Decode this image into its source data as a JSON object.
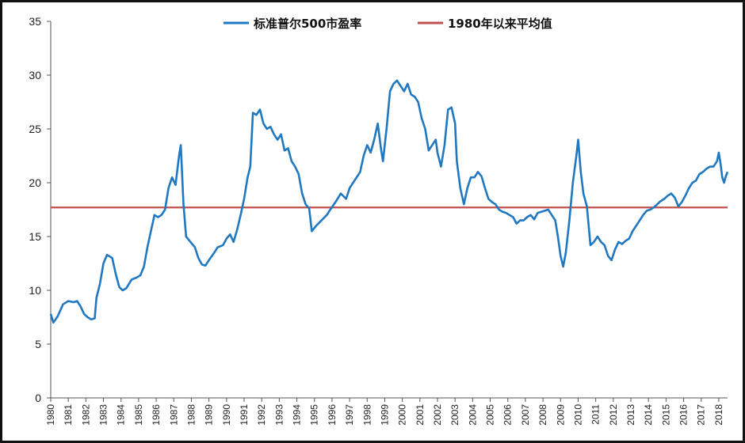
{
  "chart_data": {
    "type": "line",
    "title": "",
    "xlabel": "",
    "ylabel": "",
    "xlim": [
      1980,
      2018.5
    ],
    "ylim": [
      0,
      35
    ],
    "y_ticks": [
      0,
      5,
      10,
      15,
      20,
      25,
      30,
      35
    ],
    "x_ticks": [
      "1980",
      "1981",
      "1982",
      "1983",
      "1984",
      "1985",
      "1986",
      "1987",
      "1988",
      "1989",
      "1990",
      "1991",
      "1992",
      "1993",
      "1994",
      "1995",
      "1996",
      "1997",
      "1998",
      "1999",
      "2000",
      "2001",
      "2002",
      "2003",
      "2004",
      "2005",
      "2006",
      "2007",
      "2008",
      "2009",
      "2010",
      "2011",
      "2012",
      "2013",
      "2014",
      "2015",
      "2016",
      "2017",
      "2018"
    ],
    "grid": false,
    "legend_position": "top-center",
    "series": [
      {
        "name": "标准普尔500市盈率",
        "color": "#1f78c1",
        "points": [
          [
            1980.0,
            7.8
          ],
          [
            1980.15,
            7.0
          ],
          [
            1980.4,
            7.6
          ],
          [
            1980.7,
            8.7
          ],
          [
            1981.0,
            9.0
          ],
          [
            1981.3,
            8.9
          ],
          [
            1981.5,
            9.0
          ],
          [
            1981.7,
            8.5
          ],
          [
            1981.9,
            7.8
          ],
          [
            1982.1,
            7.5
          ],
          [
            1982.3,
            7.3
          ],
          [
            1982.5,
            7.4
          ],
          [
            1982.6,
            9.3
          ],
          [
            1982.8,
            10.6
          ],
          [
            1983.0,
            12.5
          ],
          [
            1983.2,
            13.3
          ],
          [
            1983.5,
            13.0
          ],
          [
            1983.7,
            11.5
          ],
          [
            1983.9,
            10.3
          ],
          [
            1984.1,
            10.0
          ],
          [
            1984.3,
            10.2
          ],
          [
            1984.6,
            11.0
          ],
          [
            1984.9,
            11.2
          ],
          [
            1985.1,
            11.4
          ],
          [
            1985.3,
            12.2
          ],
          [
            1985.5,
            14.0
          ],
          [
            1985.7,
            15.5
          ],
          [
            1985.9,
            17.0
          ],
          [
            1986.1,
            16.8
          ],
          [
            1986.3,
            17.0
          ],
          [
            1986.5,
            17.5
          ],
          [
            1986.7,
            19.5
          ],
          [
            1986.9,
            20.5
          ],
          [
            1987.1,
            19.8
          ],
          [
            1987.3,
            22.5
          ],
          [
            1987.4,
            23.5
          ],
          [
            1987.55,
            18.0
          ],
          [
            1987.7,
            15.0
          ],
          [
            1987.9,
            14.6
          ],
          [
            1988.2,
            14.0
          ],
          [
            1988.4,
            13.0
          ],
          [
            1988.6,
            12.4
          ],
          [
            1988.8,
            12.3
          ],
          [
            1989.0,
            12.8
          ],
          [
            1989.3,
            13.5
          ],
          [
            1989.5,
            14.0
          ],
          [
            1989.8,
            14.2
          ],
          [
            1990.0,
            14.8
          ],
          [
            1990.2,
            15.2
          ],
          [
            1990.4,
            14.5
          ],
          [
            1990.6,
            15.6
          ],
          [
            1990.8,
            17.0
          ],
          [
            1991.0,
            18.5
          ],
          [
            1991.2,
            20.5
          ],
          [
            1991.35,
            21.5
          ],
          [
            1991.5,
            26.5
          ],
          [
            1991.7,
            26.3
          ],
          [
            1991.9,
            26.8
          ],
          [
            1992.1,
            25.5
          ],
          [
            1992.3,
            25.0
          ],
          [
            1992.5,
            25.2
          ],
          [
            1992.7,
            24.5
          ],
          [
            1992.9,
            24.0
          ],
          [
            1993.1,
            24.5
          ],
          [
            1993.3,
            23.0
          ],
          [
            1993.5,
            23.2
          ],
          [
            1993.7,
            22.0
          ],
          [
            1993.9,
            21.5
          ],
          [
            1994.1,
            20.8
          ],
          [
            1994.3,
            19.0
          ],
          [
            1994.5,
            18.0
          ],
          [
            1994.7,
            17.6
          ],
          [
            1994.85,
            15.5
          ],
          [
            1995.1,
            16.0
          ],
          [
            1995.4,
            16.5
          ],
          [
            1995.7,
            17.0
          ],
          [
            1995.9,
            17.5
          ],
          [
            1996.2,
            18.2
          ],
          [
            1996.5,
            19.0
          ],
          [
            1996.8,
            18.5
          ],
          [
            1997.0,
            19.5
          ],
          [
            1997.2,
            20.0
          ],
          [
            1997.4,
            20.5
          ],
          [
            1997.6,
            21.0
          ],
          [
            1997.8,
            22.5
          ],
          [
            1998.0,
            23.5
          ],
          [
            1998.2,
            22.8
          ],
          [
            1998.4,
            24.0
          ],
          [
            1998.6,
            25.5
          ],
          [
            1998.8,
            23.0
          ],
          [
            1998.9,
            22.0
          ],
          [
            1999.1,
            25.0
          ],
          [
            1999.3,
            28.5
          ],
          [
            1999.5,
            29.2
          ],
          [
            1999.7,
            29.5
          ],
          [
            1999.9,
            29.0
          ],
          [
            2000.1,
            28.5
          ],
          [
            2000.3,
            29.2
          ],
          [
            2000.5,
            28.2
          ],
          [
            2000.7,
            28.0
          ],
          [
            2000.9,
            27.5
          ],
          [
            2001.1,
            26.0
          ],
          [
            2001.3,
            25.0
          ],
          [
            2001.5,
            23.0
          ],
          [
            2001.7,
            23.5
          ],
          [
            2001.9,
            24.0
          ],
          [
            2002.0,
            22.8
          ],
          [
            2002.2,
            21.5
          ],
          [
            2002.4,
            23.5
          ],
          [
            2002.6,
            26.8
          ],
          [
            2002.8,
            27.0
          ],
          [
            2003.0,
            25.5
          ],
          [
            2003.1,
            22.0
          ],
          [
            2003.3,
            19.5
          ],
          [
            2003.5,
            18.0
          ],
          [
            2003.7,
            19.5
          ],
          [
            2003.9,
            20.5
          ],
          [
            2004.1,
            20.5
          ],
          [
            2004.3,
            21.0
          ],
          [
            2004.5,
            20.6
          ],
          [
            2004.7,
            19.5
          ],
          [
            2004.9,
            18.5
          ],
          [
            2005.1,
            18.2
          ],
          [
            2005.3,
            18.0
          ],
          [
            2005.5,
            17.5
          ],
          [
            2005.7,
            17.3
          ],
          [
            2005.9,
            17.2
          ],
          [
            2006.1,
            17.0
          ],
          [
            2006.3,
            16.8
          ],
          [
            2006.5,
            16.2
          ],
          [
            2006.7,
            16.5
          ],
          [
            2006.9,
            16.5
          ],
          [
            2007.1,
            16.8
          ],
          [
            2007.3,
            17.0
          ],
          [
            2007.5,
            16.6
          ],
          [
            2007.7,
            17.2
          ],
          [
            2007.9,
            17.3
          ],
          [
            2008.1,
            17.4
          ],
          [
            2008.3,
            17.5
          ],
          [
            2008.5,
            17.0
          ],
          [
            2008.7,
            16.5
          ],
          [
            2008.85,
            15.0
          ],
          [
            2009.0,
            13.2
          ],
          [
            2009.15,
            12.2
          ],
          [
            2009.3,
            13.5
          ],
          [
            2009.5,
            16.5
          ],
          [
            2009.7,
            20.0
          ],
          [
            2009.9,
            22.5
          ],
          [
            2010.0,
            24.0
          ],
          [
            2010.15,
            21.0
          ],
          [
            2010.3,
            19.0
          ],
          [
            2010.5,
            17.8
          ],
          [
            2010.7,
            14.2
          ],
          [
            2010.9,
            14.5
          ],
          [
            2011.1,
            15.0
          ],
          [
            2011.3,
            14.5
          ],
          [
            2011.5,
            14.2
          ],
          [
            2011.7,
            13.2
          ],
          [
            2011.9,
            12.8
          ],
          [
            2012.1,
            13.8
          ],
          [
            2012.3,
            14.5
          ],
          [
            2012.5,
            14.3
          ],
          [
            2012.7,
            14.6
          ],
          [
            2012.9,
            14.8
          ],
          [
            2013.1,
            15.5
          ],
          [
            2013.3,
            16.0
          ],
          [
            2013.5,
            16.5
          ],
          [
            2013.7,
            17.0
          ],
          [
            2013.9,
            17.4
          ],
          [
            2014.1,
            17.5
          ],
          [
            2014.3,
            17.7
          ],
          [
            2014.5,
            18.0
          ],
          [
            2014.7,
            18.3
          ],
          [
            2014.9,
            18.5
          ],
          [
            2015.1,
            18.8
          ],
          [
            2015.3,
            19.0
          ],
          [
            2015.5,
            18.6
          ],
          [
            2015.7,
            17.8
          ],
          [
            2015.9,
            18.2
          ],
          [
            2016.1,
            18.8
          ],
          [
            2016.3,
            19.5
          ],
          [
            2016.5,
            20.0
          ],
          [
            2016.7,
            20.2
          ],
          [
            2016.9,
            20.8
          ],
          [
            2017.1,
            21.0
          ],
          [
            2017.3,
            21.3
          ],
          [
            2017.5,
            21.5
          ],
          [
            2017.7,
            21.5
          ],
          [
            2017.9,
            22.0
          ],
          [
            2018.0,
            22.8
          ],
          [
            2018.1,
            21.8
          ],
          [
            2018.2,
            20.5
          ],
          [
            2018.3,
            20.0
          ],
          [
            2018.4,
            20.6
          ],
          [
            2018.5,
            21.0
          ]
        ]
      },
      {
        "name": "1980年以来平均值",
        "color": "#c0504d",
        "points": [
          [
            1980.0,
            17.7
          ],
          [
            2018.5,
            17.7
          ]
        ]
      }
    ]
  }
}
